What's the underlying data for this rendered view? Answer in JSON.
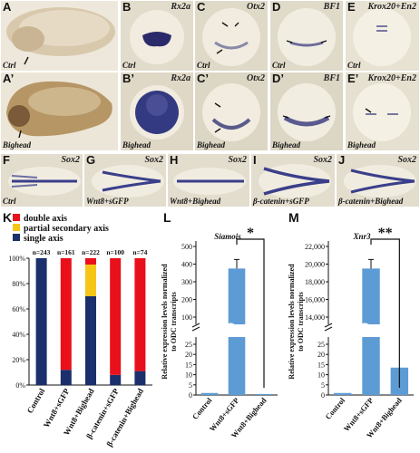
{
  "panels": {
    "A": {
      "label": "A",
      "cond": "Ctrl"
    },
    "A2": {
      "label": "A’",
      "cond": "Bighead"
    },
    "B": {
      "label": "B",
      "gene": "Rx2a",
      "cond": "Ctrl"
    },
    "B2": {
      "label": "B’",
      "gene": "Rx2a",
      "cond": "Bighead"
    },
    "C": {
      "label": "C",
      "gene": "Otx2",
      "cond": "Ctrl"
    },
    "C2": {
      "label": "C’",
      "gene": "Otx2",
      "cond": "Bighead"
    },
    "D": {
      "label": "D",
      "gene": "BF1",
      "cond": "Ctrl"
    },
    "D2": {
      "label": "D’",
      "gene": "BF1",
      "cond": "Bighead"
    },
    "E": {
      "label": "E",
      "gene": "Krox20+En2",
      "cond": "Ctrl"
    },
    "E2": {
      "label": "E’",
      "gene": "Krox20+En2",
      "cond": "Bighead"
    },
    "F": {
      "label": "F",
      "gene": "Sox2",
      "cond": "Ctrl"
    },
    "G": {
      "label": "G",
      "gene": "Sox2",
      "cond": "Wnt8+sGFP"
    },
    "H": {
      "label": "H",
      "gene": "Sox2",
      "cond": "Wnt8+Bighead"
    },
    "I": {
      "label": "I",
      "gene": "Sox2",
      "cond": "β-catenin+sGFP"
    },
    "J": {
      "label": "J",
      "gene": "Sox2",
      "cond": "β-catenin+Bighead"
    }
  },
  "chart_data": [
    {
      "panel": "K",
      "type": "bar",
      "stacked": true,
      "categories": [
        "Control",
        "Wnt8+sGFP",
        "Wnt8+Bighead",
        "β-catenin+sGFP",
        "β-catenin+Bighead"
      ],
      "n_labels": [
        "n=243",
        "n=161",
        "n=222",
        "n=100",
        "n=74"
      ],
      "series": [
        {
          "name": "single axis",
          "color": "#1a2f6b",
          "values": [
            100,
            12,
            70,
            8,
            11
          ]
        },
        {
          "name": "partial secondary axis",
          "color": "#f5c518",
          "values": [
            0,
            0,
            25,
            0,
            0
          ]
        },
        {
          "name": "double axis",
          "color": "#e8101a",
          "values": [
            0,
            88,
            5,
            92,
            89
          ]
        }
      ],
      "yticks": [
        "0%",
        "20%",
        "40%",
        "60%",
        "80%",
        "100%"
      ],
      "ylim": [
        0,
        100
      ]
    },
    {
      "panel": "L",
      "type": "bar",
      "title": "Siamois",
      "categories": [
        "Control",
        "Wnt8+sGFP",
        "Wnt8+Bighead"
      ],
      "values": [
        1,
        375,
        0.5
      ],
      "ylabel_lines": [
        "Relative expression levels normalized",
        "to ODC transcripts"
      ],
      "yticks_upper": [
        "100",
        "200",
        "300",
        "400",
        "500"
      ],
      "yticks_lower": [
        "0",
        "5",
        "10",
        "15",
        "20",
        "25"
      ],
      "significance": "*",
      "color": "#5d9bd5"
    },
    {
      "panel": "M",
      "type": "bar",
      "title": "Xnr3",
      "categories": [
        "Control",
        "Wnt8+sGFP",
        "Wnt8+Bighead"
      ],
      "values": [
        1,
        19500,
        13.5
      ],
      "ylabel_lines": [
        "Relative expression levels normalized",
        "to ODC transcripts"
      ],
      "yticks_upper": [
        "14,000",
        "16,000",
        "18,000",
        "20,000",
        "22,000"
      ],
      "yticks_lower": [
        "0",
        "5",
        "10",
        "15",
        "20",
        "25"
      ],
      "significance": "**",
      "color": "#5d9bd5"
    }
  ]
}
